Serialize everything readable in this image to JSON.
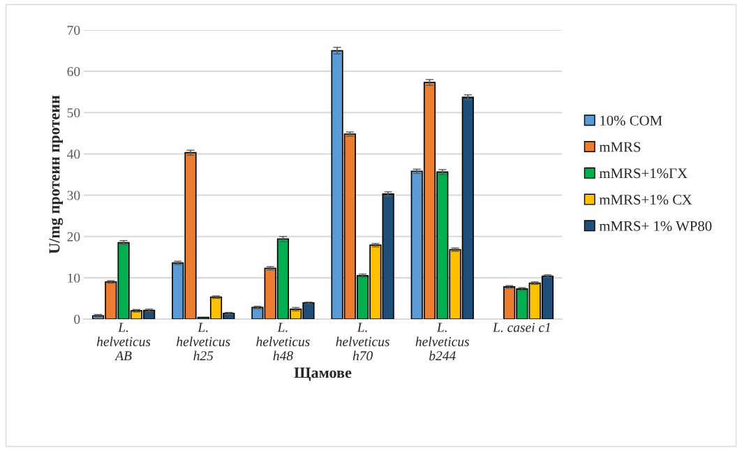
{
  "chart_data": {
    "type": "bar",
    "xlabel": "Щамове",
    "ylabel": "U/mg протеин протеин",
    "categories": [
      "L.\nhelveticus\nAB",
      "L.\nhelveticus\nh25",
      "L.\nhelveticus\nh48",
      "L.\nhelveticus\nh70",
      "L.\nhelveticus\nb244",
      "L. casei c1"
    ],
    "series": [
      {
        "name": "10% СОМ",
        "color": "#5b9bd5",
        "values": [
          0.8,
          13.6,
          2.8,
          65.0,
          35.8,
          null
        ],
        "errors": [
          0.3,
          0.4,
          0.3,
          0.8,
          0.5,
          null
        ]
      },
      {
        "name": "mMRS",
        "color": "#ed7d31",
        "values": [
          9.0,
          40.3,
          12.3,
          44.8,
          57.3,
          7.8
        ],
        "errors": [
          0.3,
          0.6,
          0.4,
          0.5,
          0.7,
          0.3
        ]
      },
      {
        "name": "mMRS+1%ГХ",
        "color": "#00b050",
        "values": [
          18.5,
          0.4,
          19.4,
          10.5,
          35.6,
          7.3
        ],
        "errors": [
          0.5,
          null,
          0.6,
          0.4,
          0.6,
          0.3
        ]
      },
      {
        "name": "mMRS+1% СХ",
        "color": "#ffc000",
        "values": [
          2.0,
          5.3,
          2.4,
          17.9,
          16.8,
          8.7
        ],
        "errors": [
          0.3,
          0.3,
          0.4,
          0.4,
          0.4,
          0.3
        ]
      },
      {
        "name": "mMRS+ 1% WP80",
        "color": "#1f4e79",
        "values": [
          2.1,
          1.4,
          3.9,
          30.3,
          53.7,
          10.4
        ],
        "errors": [
          0.3,
          0.2,
          0.2,
          0.5,
          0.6,
          0.3
        ]
      }
    ],
    "ylim": [
      0,
      70
    ],
    "yticks": [
      0,
      10,
      20,
      30,
      40,
      50,
      60,
      70
    ],
    "grid": "y",
    "legend": "right"
  }
}
